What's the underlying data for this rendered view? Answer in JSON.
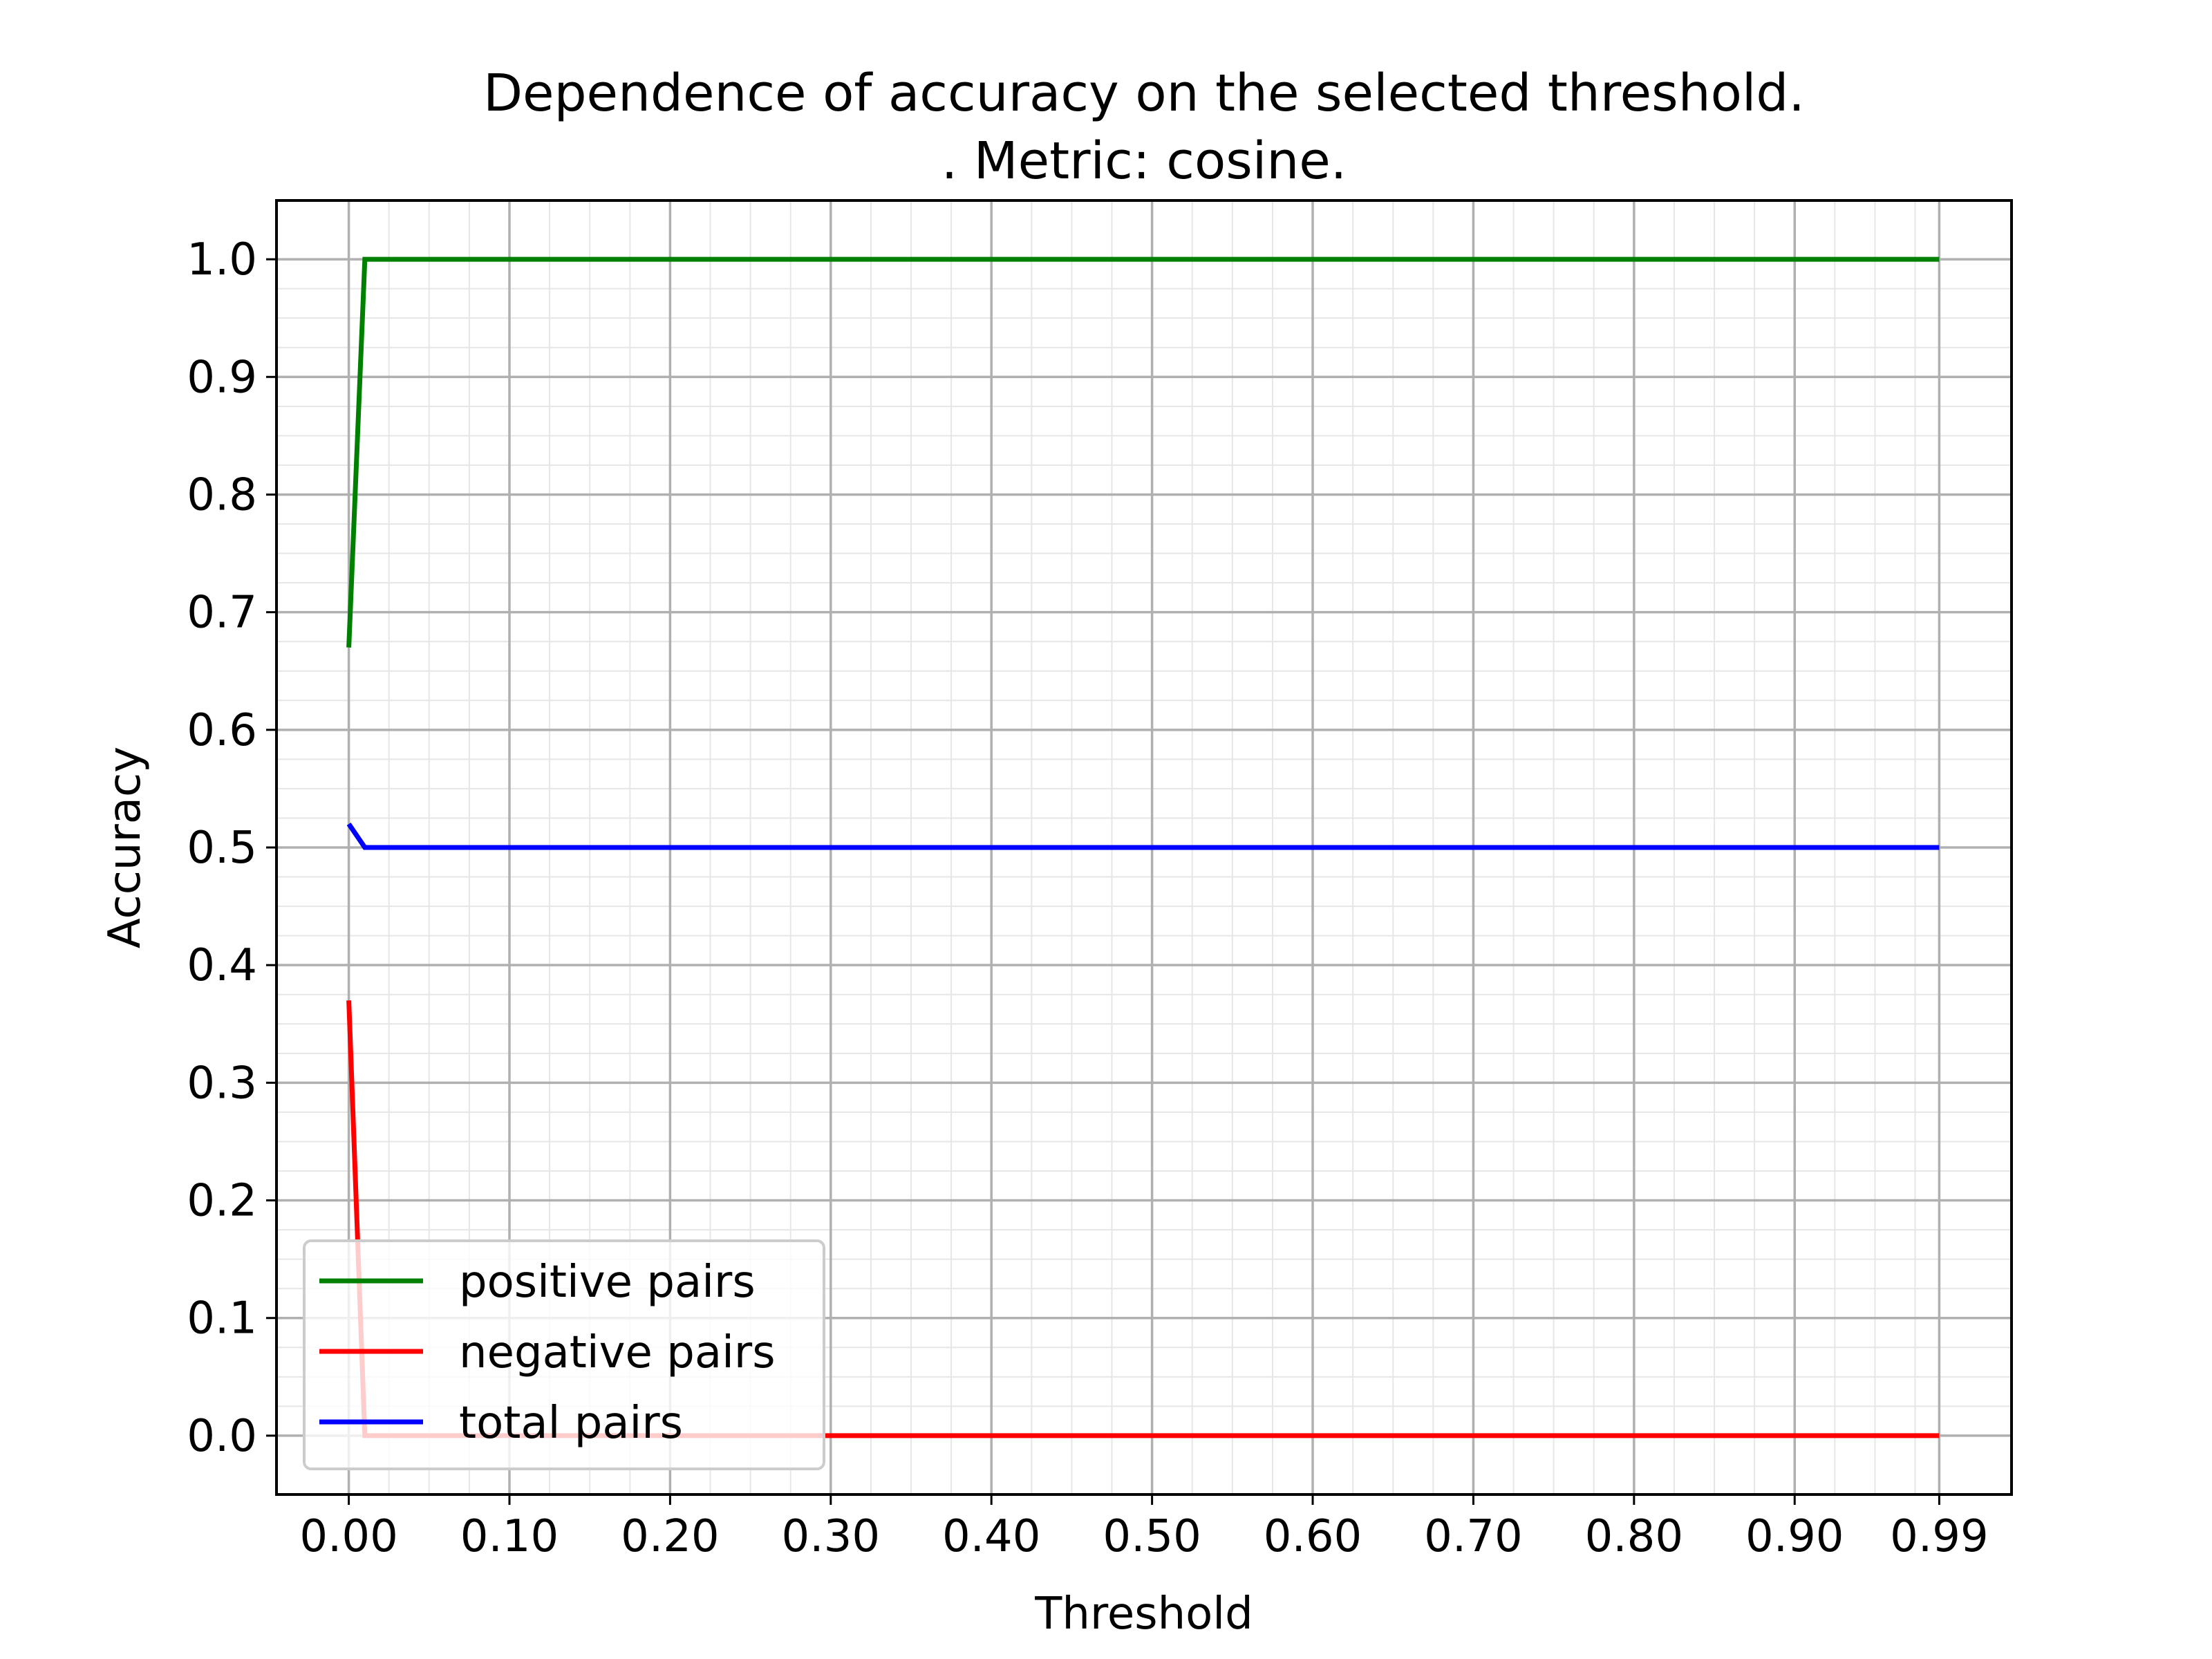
{
  "chart_data": {
    "type": "line",
    "title_line1": "Dependence of accuracy on the selected threshold.",
    "title_line2": ". Metric: cosine.",
    "xlabel": "Threshold",
    "ylabel": "Accuracy",
    "xlim": [
      -0.045,
      1.035
    ],
    "ylim": [
      -0.05,
      1.05
    ],
    "grid": true,
    "minor_grid": true,
    "legend_position": "lower-left",
    "x_ticks": [
      0.0,
      0.1,
      0.2,
      0.3,
      0.4,
      0.5,
      0.6,
      0.7,
      0.8,
      0.9,
      0.99
    ],
    "x_tick_labels": [
      "0.00",
      "0.10",
      "0.20",
      "0.30",
      "0.40",
      "0.50",
      "0.60",
      "0.70",
      "0.80",
      "0.90",
      "0.99"
    ],
    "y_ticks": [
      0.0,
      0.1,
      0.2,
      0.3,
      0.4,
      0.5,
      0.6,
      0.7,
      0.8,
      0.9,
      1.0
    ],
    "y_tick_labels": [
      "0.0",
      "0.1",
      "0.2",
      "0.3",
      "0.4",
      "0.5",
      "0.6",
      "0.7",
      "0.8",
      "0.9",
      "1.0"
    ],
    "x": [
      0.0,
      0.01,
      0.99
    ],
    "series": [
      {
        "name": "positive pairs",
        "color": "#008000",
        "values": [
          0.67,
          1.0,
          1.0
        ]
      },
      {
        "name": "negative pairs",
        "color": "#ff0000",
        "values": [
          0.37,
          0.0,
          0.0
        ]
      },
      {
        "name": "total pairs",
        "color": "#0000ff",
        "values": [
          0.52,
          0.5,
          0.5
        ]
      }
    ]
  }
}
